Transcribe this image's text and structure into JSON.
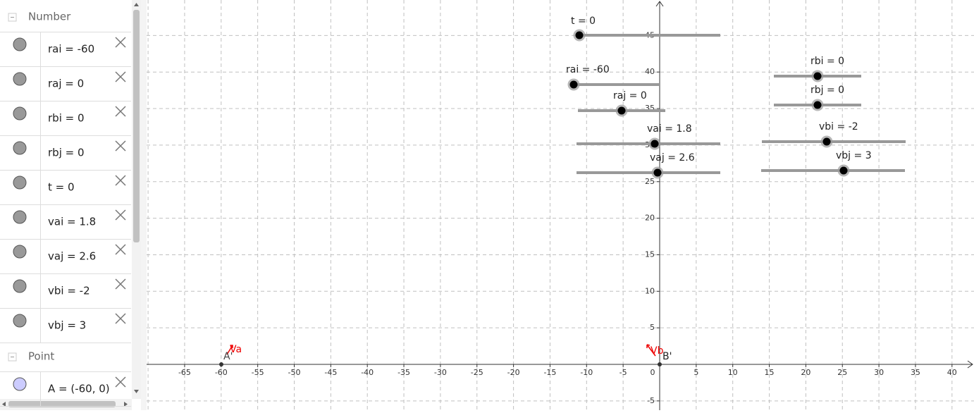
{
  "algebra": {
    "groups": [
      {
        "title": "Number",
        "items": [
          "rai = -60",
          "raj = 0",
          "rbi = 0",
          "rbj = 0",
          "t = 0",
          "vai = 1.8",
          "vaj = 2.6",
          "vbi = -2",
          "vbj = 3"
        ]
      },
      {
        "title": "Point",
        "items": [
          "A = (-60, 0)"
        ]
      }
    ]
  },
  "graphics": {
    "x_ticks": [
      -65,
      -60,
      -55,
      -50,
      -45,
      -40,
      -35,
      -30,
      -25,
      -20,
      -15,
      -10,
      -5,
      0,
      5,
      10,
      15,
      20,
      25,
      30,
      35,
      40
    ],
    "y_ticks": [
      -5,
      5,
      10,
      15,
      20,
      25,
      30,
      35,
      40,
      45
    ],
    "sliders": [
      {
        "label": "t = 0"
      },
      {
        "label": "rai = -60"
      },
      {
        "label": "raj = 0"
      },
      {
        "label": "vai = 1.8"
      },
      {
        "label": "vaj = 2.6"
      },
      {
        "label": "rbi = 0"
      },
      {
        "label": "rbj = 0"
      },
      {
        "label": "vbi = -2"
      },
      {
        "label": "vbj = 3"
      }
    ],
    "points": [
      {
        "label": "A'"
      },
      {
        "label": "B'"
      }
    ],
    "vectors": [
      {
        "label": "Va"
      },
      {
        "label": "Vb"
      }
    ]
  }
}
